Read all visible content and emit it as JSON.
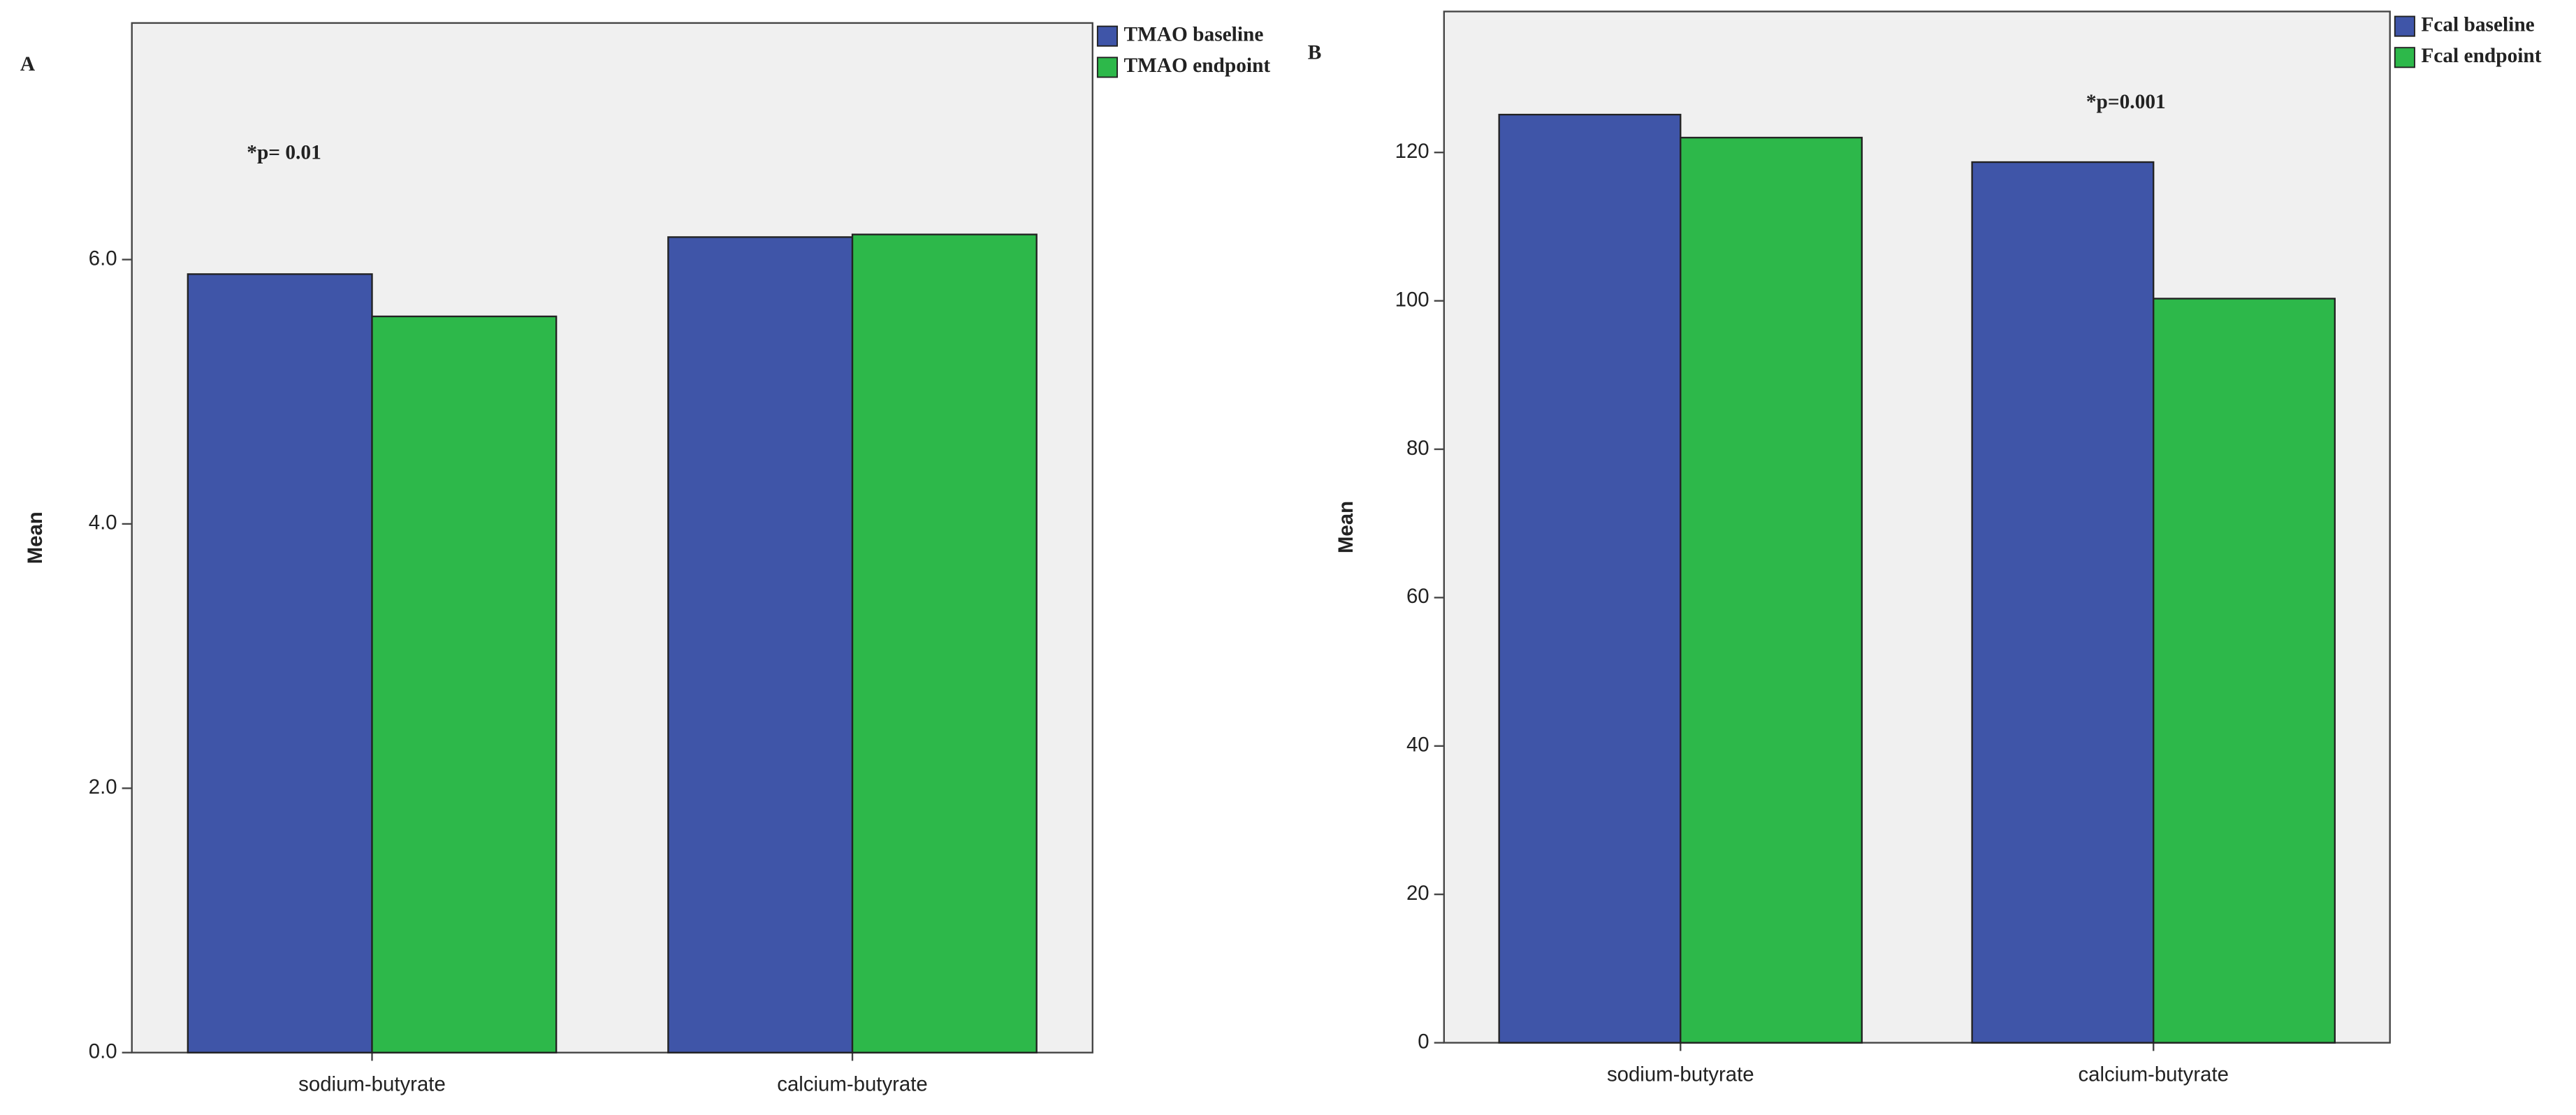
{
  "chart_data": [
    {
      "type": "bar",
      "panel": "A",
      "annotation": "*p= 0.01",
      "ylabel": "Mean",
      "categories": [
        "sodium-butyrate",
        "calcium-butyrate"
      ],
      "series": [
        {
          "name": "TMAO baseline",
          "color": "#3f55a8",
          "values": [
            5.89,
            6.17
          ]
        },
        {
          "name": "TMAO endpoint",
          "color": "#2db84a",
          "values": [
            5.57,
            6.19
          ]
        }
      ],
      "ylim": [
        0,
        7.79
      ],
      "yticks": [
        {
          "value": 0,
          "label": "0.0"
        },
        {
          "value": 2,
          "label": "2.0"
        },
        {
          "value": 4,
          "label": "4.0"
        },
        {
          "value": 6,
          "label": "6.0"
        }
      ],
      "grid": false
    },
    {
      "type": "bar",
      "panel": "B",
      "annotation": "*p=0.001",
      "ylabel": "Mean",
      "categories": [
        "sodium-butyrate",
        "calcium-butyrate"
      ],
      "series": [
        {
          "name": "Fcal baseline",
          "color": "#3f55a8",
          "values": [
            125.1,
            118.7
          ]
        },
        {
          "name": "Fcal endpoint",
          "color": "#2db84a",
          "values": [
            122,
            100.3
          ]
        }
      ],
      "ylim": [
        0,
        139
      ],
      "yticks": [
        0,
        20,
        40,
        60,
        80,
        100,
        120
      ],
      "grid": false
    }
  ]
}
